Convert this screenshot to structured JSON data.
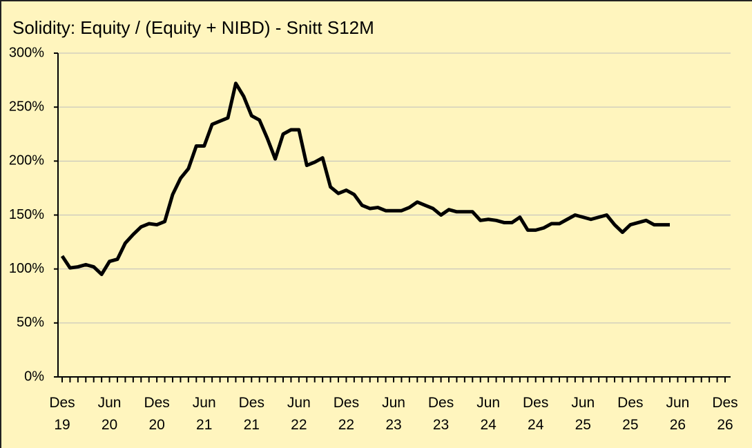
{
  "chart_data": {
    "type": "line",
    "title": "Solidity: Equity / (Equity + NIBD) - Snitt S12M",
    "categories": [
      "Des 19",
      null,
      null,
      null,
      null,
      null,
      "Jun 20",
      null,
      null,
      null,
      null,
      null,
      "Des 20",
      null,
      null,
      null,
      null,
      null,
      "Jun 21",
      null,
      null,
      null,
      null,
      null,
      "Des 21",
      null,
      null,
      null,
      null,
      null,
      "Jun 22",
      null,
      null,
      null,
      null,
      null,
      "Des 22",
      null,
      null,
      null,
      null,
      null,
      "Jun 23",
      null,
      null,
      null,
      null,
      null,
      "Des 23",
      null,
      null,
      null,
      null,
      null,
      "Jun 24",
      null,
      null,
      null,
      null,
      null,
      "Des 24",
      null,
      null,
      null,
      null,
      null,
      "Jun 25",
      null,
      null,
      null,
      null,
      null,
      "Des 25",
      null,
      null,
      null,
      null,
      null,
      "Jun 26",
      null,
      null,
      null,
      null,
      null,
      "Des 26"
    ],
    "series": [
      {
        "name": "Solidity",
        "color": "#000000",
        "values": [
          112,
          101,
          102,
          104,
          102,
          95,
          107,
          109,
          124,
          132,
          139,
          142,
          141,
          144,
          169,
          184,
          193,
          214,
          214,
          234,
          237,
          240,
          272,
          260,
          242,
          238,
          221,
          202,
          225,
          229,
          229,
          196,
          199,
          203,
          176,
          170,
          173,
          169,
          159,
          156,
          157,
          154,
          154,
          154,
          157,
          162,
          159,
          156,
          150,
          155,
          153,
          153,
          153,
          145,
          146,
          145,
          143,
          143,
          148,
          136,
          136,
          138,
          142,
          142,
          146,
          150,
          148,
          146,
          148,
          150,
          141,
          134,
          141,
          143,
          145,
          141,
          141,
          141,
          null,
          null,
          null,
          null,
          null,
          null,
          null
        ]
      }
    ],
    "ylim": [
      0,
      300
    ],
    "yticks": [
      {
        "value": 0,
        "label": "0%"
      },
      {
        "value": 50,
        "label": "50%"
      },
      {
        "value": 100,
        "label": "100%"
      },
      {
        "value": 150,
        "label": "150%"
      },
      {
        "value": 200,
        "label": "200%"
      },
      {
        "value": 250,
        "label": "250%"
      },
      {
        "value": 300,
        "label": "300%"
      }
    ],
    "grid": true
  }
}
